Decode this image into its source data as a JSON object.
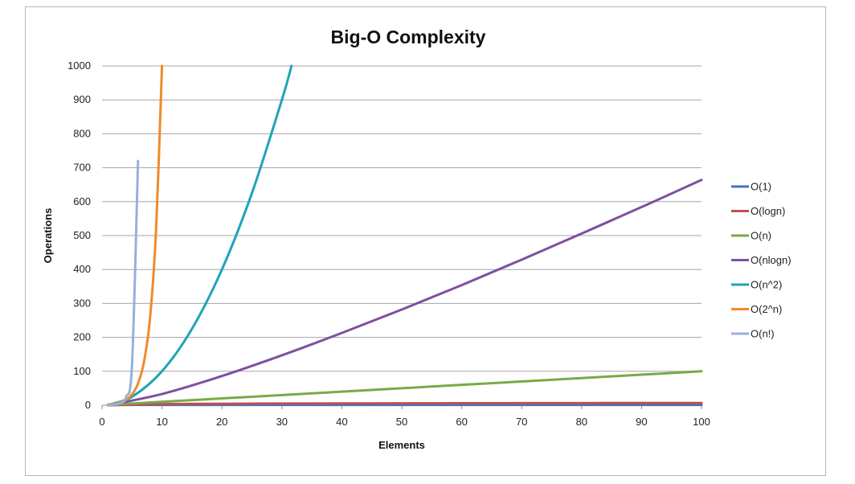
{
  "chart_data": {
    "type": "line",
    "title": "Big-O Complexity",
    "xlabel": "Elements",
    "ylabel": "Operations",
    "xlim": [
      0,
      100
    ],
    "ylim": [
      0,
      1000
    ],
    "x_ticks": [
      0,
      10,
      20,
      30,
      40,
      50,
      60,
      70,
      80,
      90,
      100
    ],
    "y_ticks": [
      0,
      100,
      200,
      300,
      400,
      500,
      600,
      700,
      800,
      900,
      1000
    ],
    "grid": "horizontal",
    "legend_position": "right",
    "series": [
      {
        "name": "O(1)",
        "color": "#4472c4",
        "x": [
          1,
          10,
          20,
          30,
          40,
          50,
          60,
          70,
          80,
          90,
          100
        ],
        "y": [
          1,
          1,
          1,
          1,
          1,
          1,
          1,
          1,
          1,
          1,
          1
        ]
      },
      {
        "name": "O(logn)",
        "color": "#c0504d",
        "x": [
          1,
          10,
          20,
          30,
          40,
          50,
          60,
          70,
          80,
          90,
          100
        ],
        "y": [
          0,
          3.3,
          4.3,
          4.9,
          5.3,
          5.6,
          5.9,
          6.1,
          6.3,
          6.5,
          6.6
        ]
      },
      {
        "name": "O(n)",
        "color": "#77ab46",
        "x": [
          1,
          10,
          20,
          30,
          40,
          50,
          60,
          70,
          80,
          90,
          100
        ],
        "y": [
          1,
          10,
          20,
          30,
          40,
          50,
          60,
          70,
          80,
          90,
          100
        ]
      },
      {
        "name": "O(nlogn)",
        "color": "#7f4fa0",
        "x": [
          1,
          10,
          20,
          30,
          40,
          50,
          60,
          70,
          80,
          90,
          100
        ],
        "y": [
          0,
          33,
          86,
          147,
          213,
          282,
          354,
          429,
          506,
          584,
          664
        ]
      },
      {
        "name": "O(n^2)",
        "color": "#1fa3b8",
        "x": [
          1,
          5,
          10,
          15,
          20,
          25,
          30,
          31.6
        ],
        "y": [
          1,
          25,
          100,
          225,
          400,
          625,
          900,
          1000
        ]
      },
      {
        "name": "O(2^n)",
        "color": "#f08a2c",
        "x": [
          1,
          2,
          3,
          4,
          5,
          6,
          7,
          8,
          9,
          10
        ],
        "y": [
          2,
          4,
          8,
          16,
          32,
          64,
          128,
          256,
          512,
          1000
        ]
      },
      {
        "name": "O(n!)",
        "color": "#96b0dc",
        "x": [
          1,
          2,
          3,
          4,
          5,
          6
        ],
        "y": [
          1,
          2,
          6,
          24,
          120,
          720
        ]
      }
    ]
  }
}
